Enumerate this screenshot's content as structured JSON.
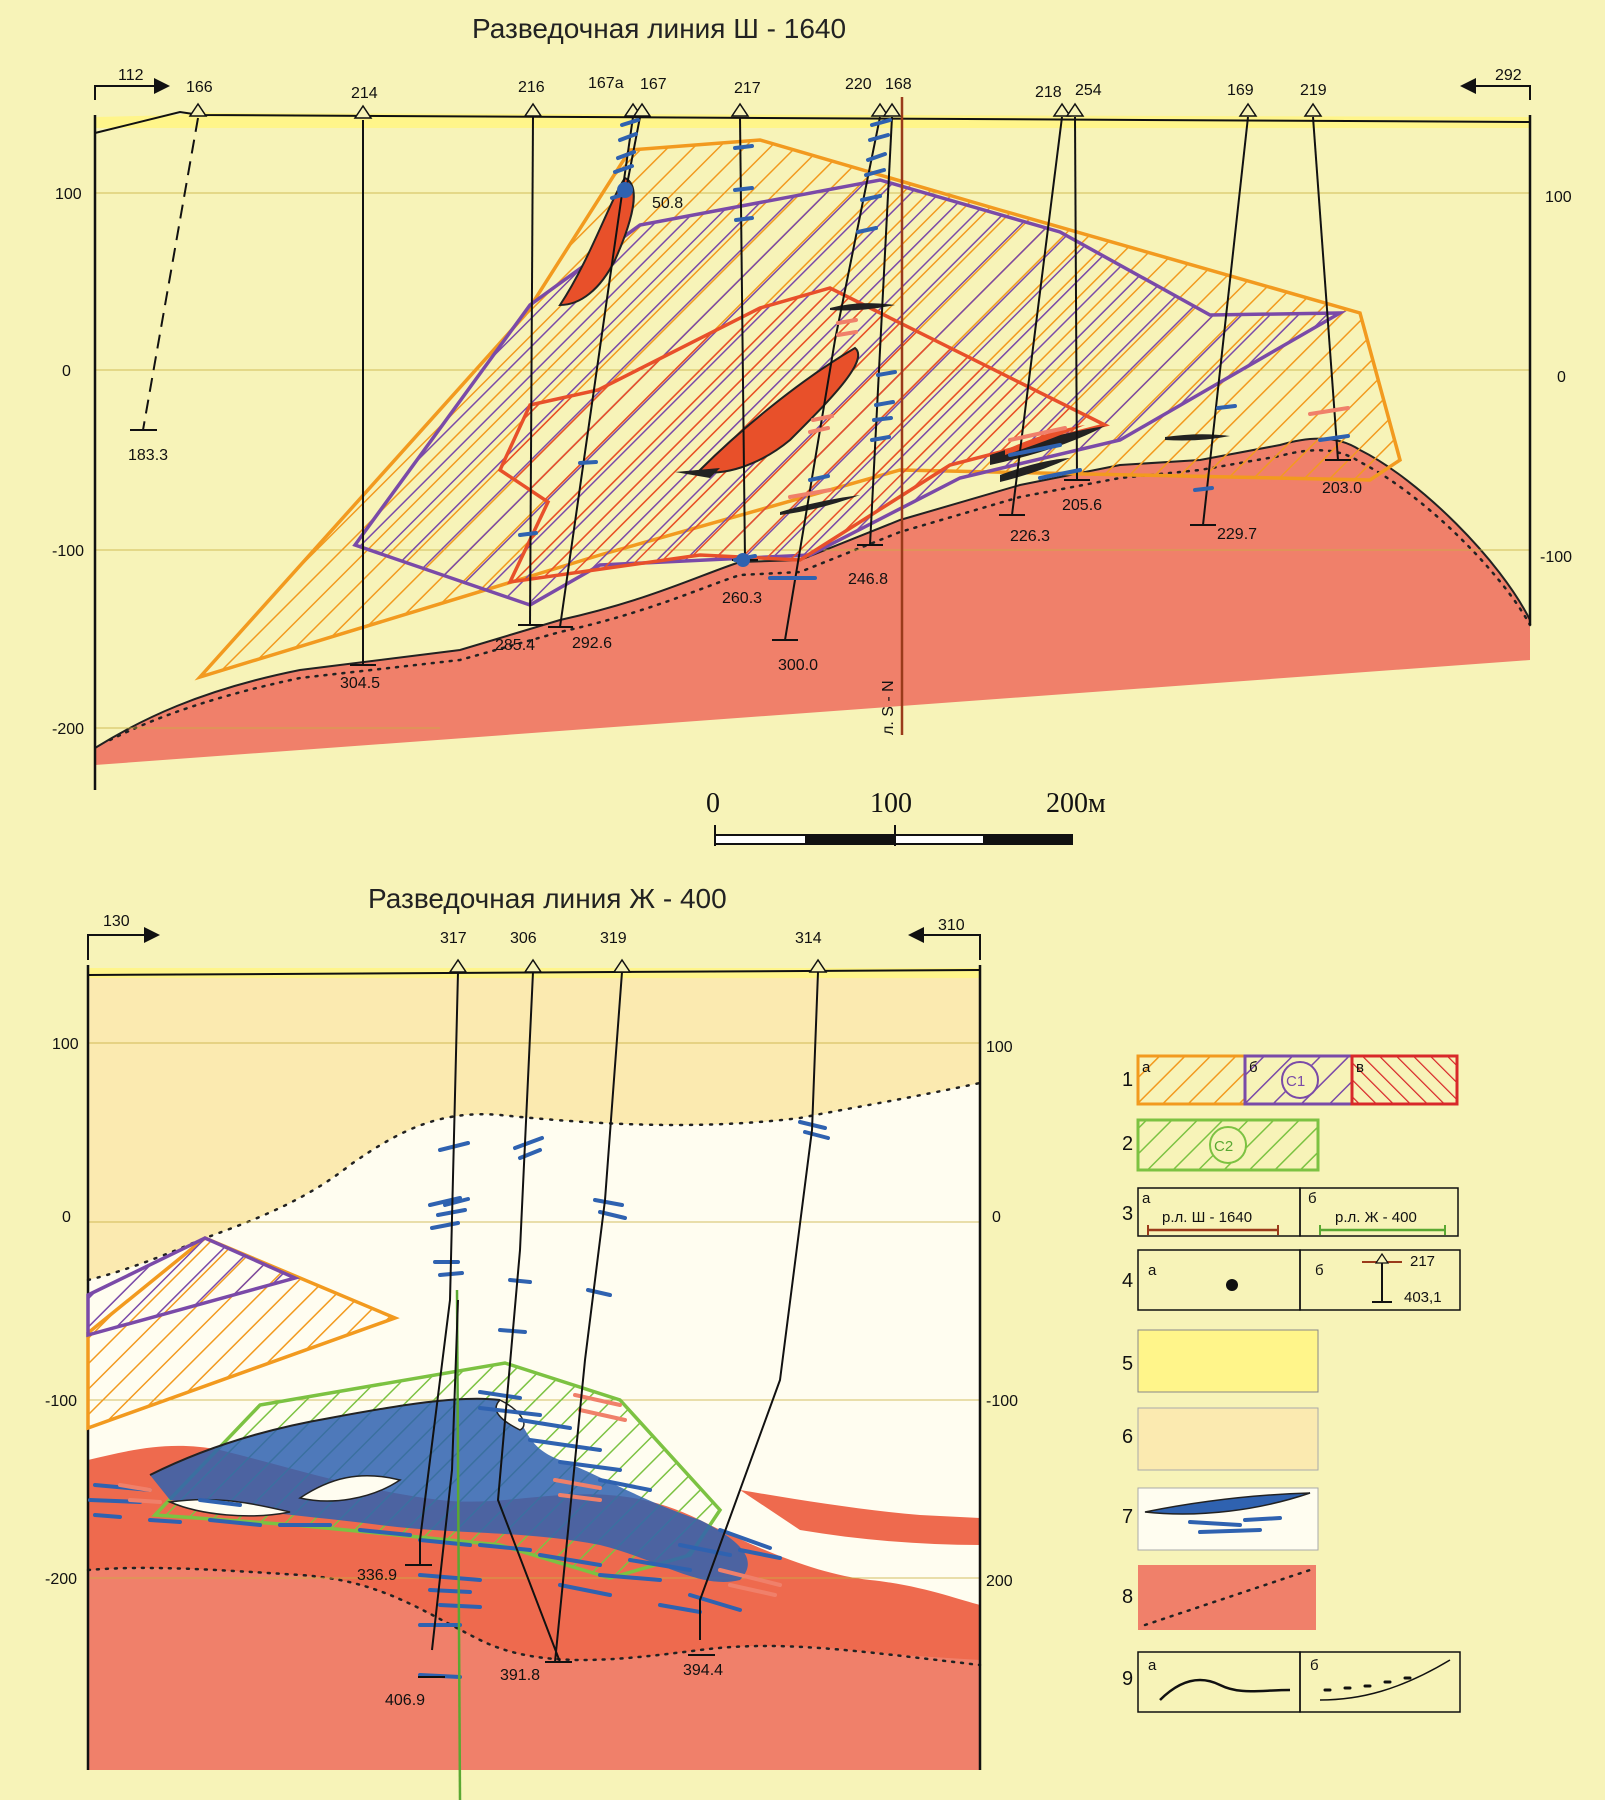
{
  "section1": {
    "title": "Разведочная линия  Ш - 1640",
    "left_marker": "112",
    "right_marker": "292",
    "elevation_ticks": [
      "100",
      "0",
      "-100",
      "-200"
    ],
    "well_labels": [
      "166",
      "214",
      "216",
      "167а",
      "167",
      "217",
      "220",
      "168",
      "218",
      "254",
      "169",
      "219"
    ],
    "depth_labels": [
      "183.3",
      "50.8",
      "304.5",
      "285.4",
      "292.6",
      "260.3",
      "300.0",
      "246.8",
      "226.3",
      "205.6",
      "229.7",
      "203.0"
    ],
    "crossing_line_label": "л. S - N"
  },
  "scale_bar": {
    "labels": [
      "0",
      "100",
      "200м"
    ]
  },
  "section2": {
    "title": "Разведочная линия  Ж - 400",
    "left_marker": "130",
    "right_marker": "310",
    "elevation_ticks_left": [
      "100",
      "0",
      "-100",
      "-200"
    ],
    "elevation_ticks_right": [
      "100",
      "0",
      "-100",
      "200"
    ],
    "well_labels": [
      "317",
      "306",
      "319",
      "314"
    ],
    "depth_labels": [
      "336.9",
      "406.9",
      "391.8",
      "394.4"
    ]
  },
  "legend": {
    "numbers": [
      "1",
      "2",
      "3",
      "4",
      "5",
      "6",
      "7",
      "8",
      "9"
    ],
    "item1_sub": [
      "а",
      "б",
      "в"
    ],
    "item1_badge": "C1",
    "item2_badge": "C2",
    "item3_sub": [
      "а",
      "б"
    ],
    "item3_texts": [
      "р.л. Ш - 1640",
      "р.л. Ж - 400"
    ],
    "item4_sub": [
      "а",
      "б"
    ],
    "item4_values": [
      "217",
      "403,1"
    ],
    "item9_sub": [
      "а",
      "б"
    ]
  },
  "colors": {
    "background": "#f7f3b8",
    "pale_sediment": "#fbeab0",
    "bright_yellow": "#fff58a",
    "basement": "#f0806a",
    "basement_dark": "#ee6a4e",
    "orange": "#f29a1f",
    "purple": "#7a4aa8",
    "red": "#e8502a",
    "green": "#7cc242",
    "ore_blue": "#2f62b0",
    "brown_line": "#9a3a1a"
  }
}
